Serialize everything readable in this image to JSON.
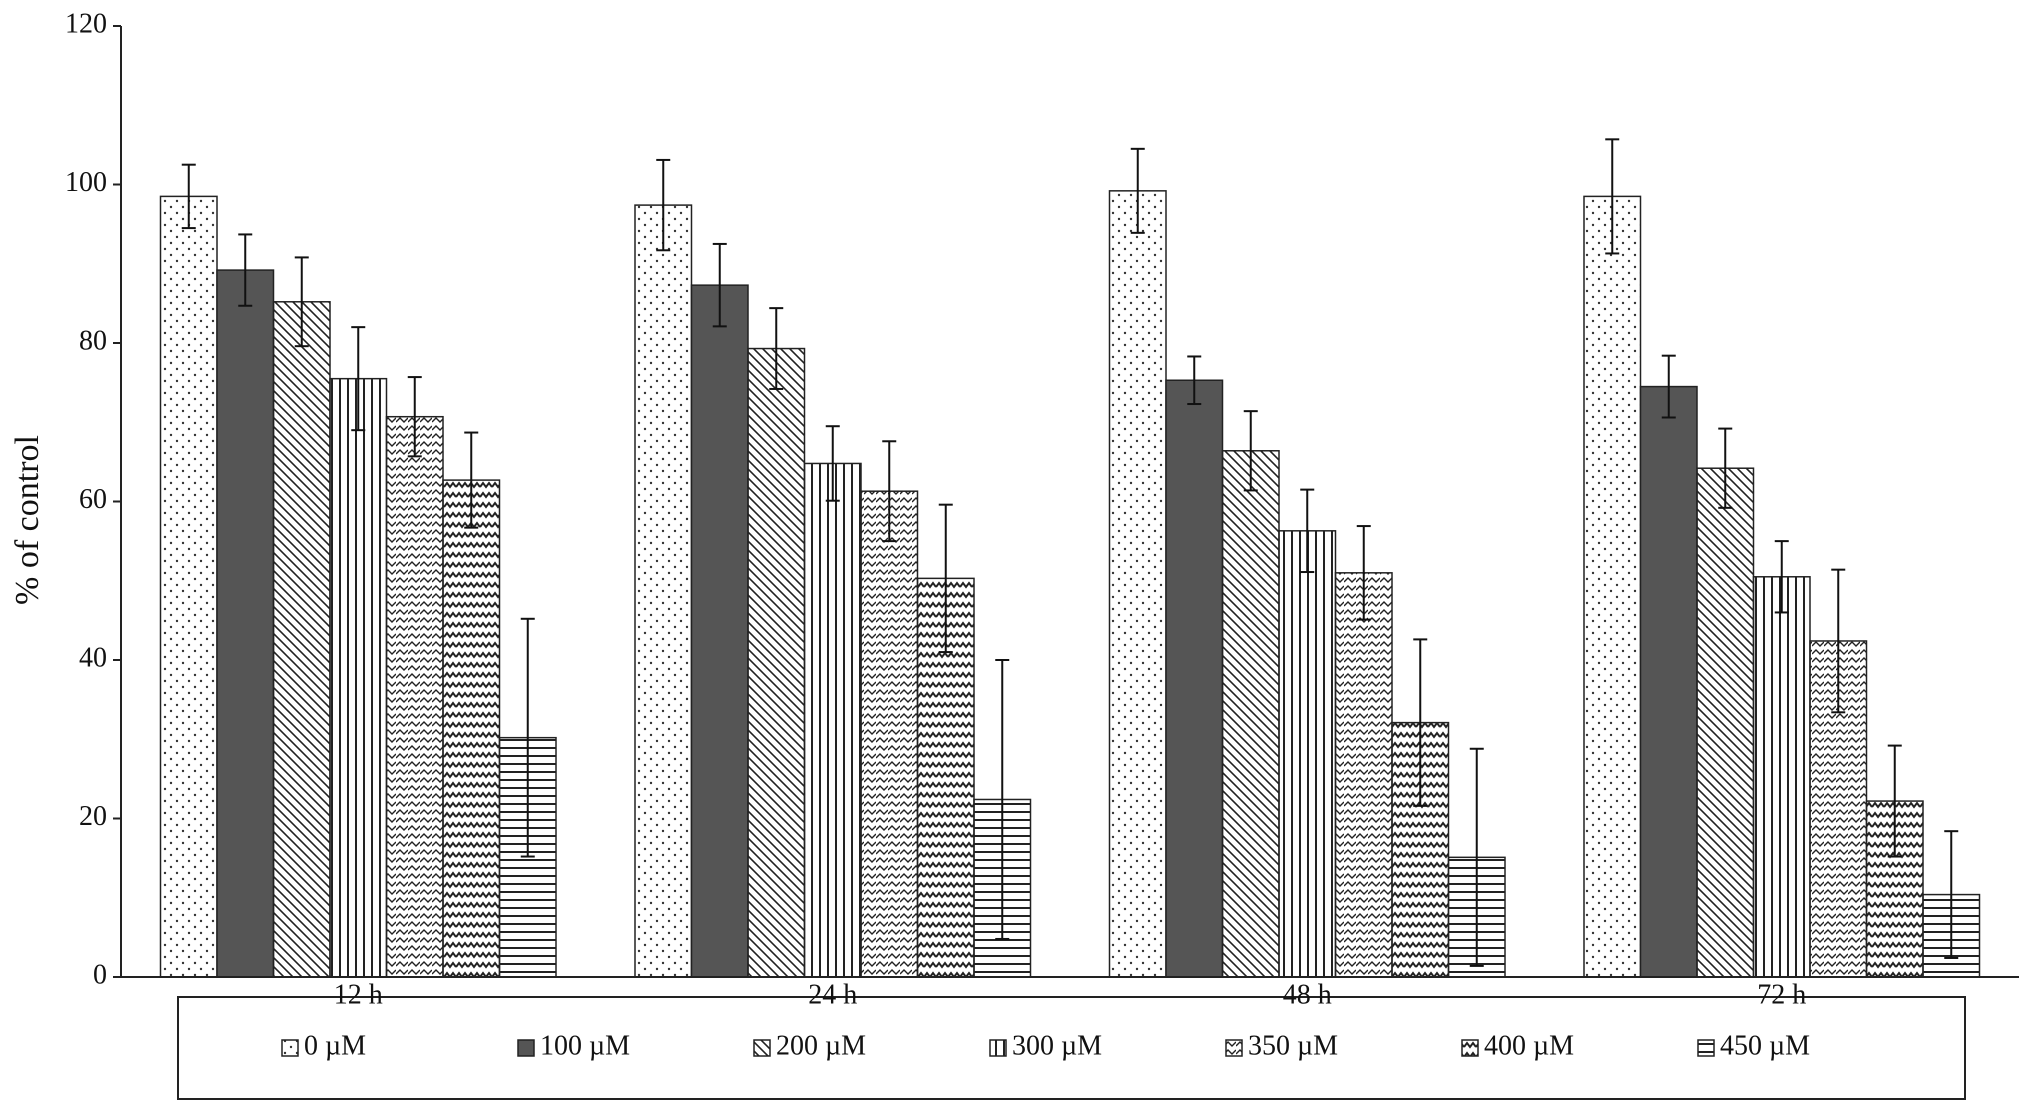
{
  "chart_data": {
    "type": "bar",
    "y_label": "% of control",
    "categories": [
      "12 h",
      "24 h",
      "48 h",
      "72 h"
    ],
    "ylim": [
      0,
      120
    ],
    "yticks": [
      0,
      20,
      40,
      60,
      80,
      100,
      120
    ],
    "series": [
      {
        "name": "0 µM",
        "color": "#ffffff",
        "values": [
          98.5,
          97.4,
          99.2,
          98.5
        ],
        "errors": [
          4,
          5.7,
          5.3,
          7.2
        ]
      },
      {
        "name": "100 µM",
        "color": "#555555",
        "values": [
          89.2,
          87.3,
          75.3,
          74.5
        ],
        "errors": [
          4.5,
          5.2,
          3,
          3.9
        ]
      },
      {
        "name": "200 µM",
        "color": "#ffffff",
        "values": [
          85.2,
          79.3,
          66.4,
          64.2
        ],
        "errors": [
          5.6,
          5.1,
          5,
          5
        ]
      },
      {
        "name": "300 µM",
        "color": "#ffffff",
        "values": [
          75.5,
          64.8,
          56.3,
          50.5
        ],
        "errors": [
          6.5,
          4.7,
          5.2,
          4.5
        ]
      },
      {
        "name": "350 µM",
        "color": "#ffffff",
        "values": [
          70.7,
          61.3,
          51.0,
          42.4
        ],
        "errors": [
          5,
          6.3,
          5.9,
          9
        ]
      },
      {
        "name": "400 µM",
        "color": "#ffffff",
        "values": [
          62.7,
          50.3,
          32.1,
          22.2
        ],
        "errors": [
          6,
          9.3,
          10.5,
          7
        ]
      },
      {
        "name": "450 µM",
        "color": "#ffffff",
        "values": [
          30.2,
          22.4,
          15.1,
          10.4
        ],
        "errors": [
          15,
          17.6,
          13.7,
          8
        ]
      }
    ]
  }
}
